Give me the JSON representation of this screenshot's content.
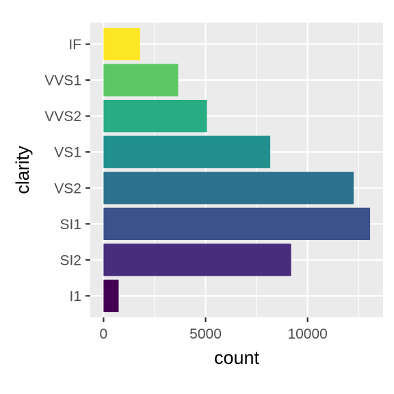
{
  "chart_data": {
    "type": "bar",
    "orientation": "horizontal",
    "categories": [
      "I1",
      "SI2",
      "SI1",
      "VS2",
      "VS1",
      "VVS2",
      "VVS1",
      "IF"
    ],
    "values": [
      741,
      9194,
      13065,
      12258,
      8171,
      5066,
      3655,
      1790
    ],
    "colors": [
      "#440154",
      "#482878",
      "#3E4A89",
      "#31688E",
      "#26828E",
      "#1F9E89",
      "#35B779",
      "#6DCD59",
      "#B4DE2C",
      "#FDE725"
    ],
    "bar_colors": [
      "#440154",
      "#472D7B",
      "#3B528B",
      "#2C728E",
      "#21908C",
      "#27AD81",
      "#5DC863",
      "#FDE725"
    ],
    "xlabel": "count",
    "ylabel": "clarity",
    "xlim": [
      -650,
      13700
    ],
    "x_ticks": [
      0,
      5000,
      10000
    ],
    "x_tick_labels": [
      "0",
      "5000",
      "10000"
    ],
    "grid": true,
    "panel_background": "#EBEBEB",
    "grid_color": "#FFFFFF",
    "legend": "none"
  }
}
